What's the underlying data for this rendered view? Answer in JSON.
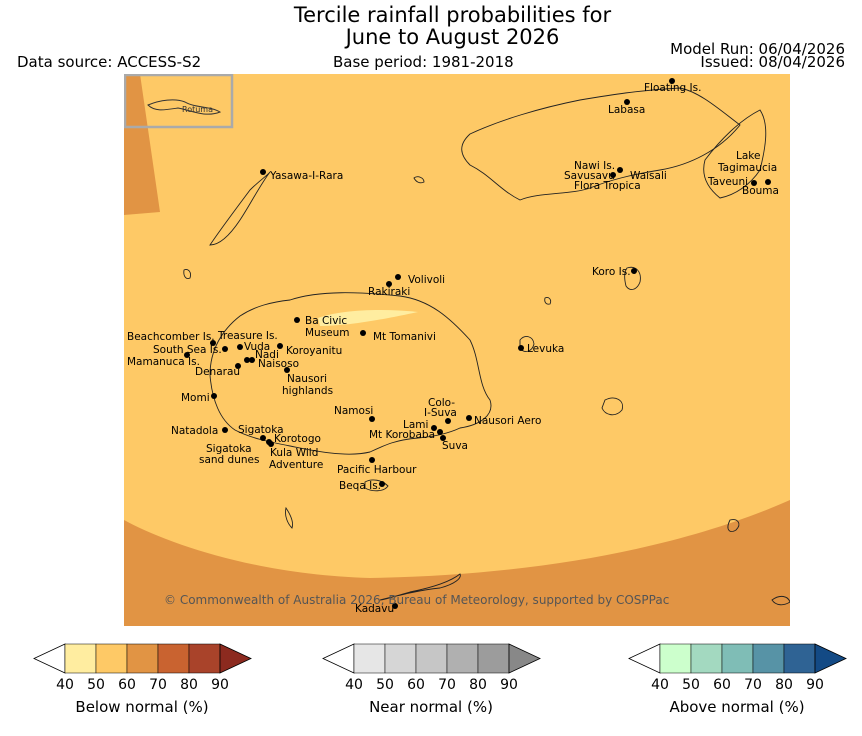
{
  "header": {
    "title_line1": "Tercile rainfall probabilities for",
    "title_line2": "June to August 2026",
    "data_source": "Data source: ACCESS-S2",
    "base_period": "Base period: 1981-2018",
    "model_run": "Model Run: 06/04/2026",
    "issued": "Issued: 08/04/2026"
  },
  "map": {
    "inset_label": "Rotuma",
    "copyright": "© Commonwealth of Australia 2026, Bureau of Meteorology, supported by COSPPac",
    "colors": {
      "below_40": "#ffeda0",
      "below_50": "#fec966",
      "below_60": "#e19444",
      "below_70": "#c96330",
      "below_80": "#a9432a",
      "below_90": "#8c2a1f",
      "near_40": "#e6e6e6",
      "near_50": "#d6d6d6",
      "near_60": "#c6c6c6",
      "near_70": "#b0b0b0",
      "near_80": "#9c9c9c",
      "near_90": "#888888",
      "above_40": "#ccffcc",
      "above_50": "#a3d9c0",
      "above_60": "#7fbdb6",
      "above_70": "#5793a6",
      "above_80": "#2f6394",
      "above_90": "#134a85"
    },
    "places": [
      {
        "name": "Floating Is."
      },
      {
        "name": "Labasa"
      },
      {
        "name": "Yasawa-I-Rara"
      },
      {
        "name": "Nawi Is."
      },
      {
        "name": "Savusavu"
      },
      {
        "name": "Waisali"
      },
      {
        "name": "Flora Tropica"
      },
      {
        "name": "Lake"
      },
      {
        "name": "Tagimaucia"
      },
      {
        "name": "Taveuni"
      },
      {
        "name": "Bouma"
      },
      {
        "name": "Koro Is."
      },
      {
        "name": "Volivoli"
      },
      {
        "name": "Rakiraki"
      },
      {
        "name": "Ba Civic"
      },
      {
        "name": "Museum"
      },
      {
        "name": "Mt Tomanivi"
      },
      {
        "name": "Beachcomber Is."
      },
      {
        "name": "Treasure Is."
      },
      {
        "name": "South Sea Is."
      },
      {
        "name": "Vuda"
      },
      {
        "name": "Koroyanitu"
      },
      {
        "name": "Mamanuca Is."
      },
      {
        "name": "Nadi"
      },
      {
        "name": "Naisoso"
      },
      {
        "name": "Denarau"
      },
      {
        "name": "Nausori"
      },
      {
        "name": "highlands"
      },
      {
        "name": "Levuka"
      },
      {
        "name": "Momi"
      },
      {
        "name": "Namosi"
      },
      {
        "name": "Colo-"
      },
      {
        "name": "I-Suva"
      },
      {
        "name": "Lami"
      },
      {
        "name": "Nausori Aero"
      },
      {
        "name": "Natadola"
      },
      {
        "name": "Sigatoka"
      },
      {
        "name": "Mt Korobaba"
      },
      {
        "name": "Korotogo"
      },
      {
        "name": "Suva"
      },
      {
        "name": "Sigatoka"
      },
      {
        "name": "sand dunes"
      },
      {
        "name": "Kula Wild"
      },
      {
        "name": "Adventure"
      },
      {
        "name": "Pacific Harbour"
      },
      {
        "name": "Beqa Is."
      },
      {
        "name": "Kadavu"
      }
    ]
  },
  "legends": [
    {
      "label": "Below normal (%)",
      "ticks": [
        "40",
        "50",
        "60",
        "70",
        "80",
        "90"
      ]
    },
    {
      "label": "Near normal (%)",
      "ticks": [
        "40",
        "50",
        "60",
        "70",
        "80",
        "90"
      ]
    },
    {
      "label": "Above normal (%)",
      "ticks": [
        "40",
        "50",
        "60",
        "70",
        "80",
        "90"
      ]
    }
  ]
}
